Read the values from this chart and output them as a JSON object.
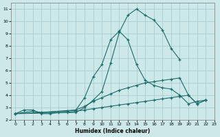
{
  "xlabel": "Humidex (Indice chaleur)",
  "background_color": "#cce8e8",
  "grid_color": "#aacccc",
  "line_color": "#1a6b6b",
  "xlim": [
    -0.5,
    23
  ],
  "ylim": [
    2,
    11.5
  ],
  "xticks": [
    0,
    1,
    2,
    3,
    4,
    5,
    6,
    7,
    8,
    9,
    10,
    11,
    12,
    13,
    14,
    15,
    16,
    17,
    18,
    19,
    20,
    21,
    22,
    23
  ],
  "yticks": [
    2,
    3,
    4,
    5,
    6,
    7,
    8,
    9,
    10,
    11
  ],
  "series": [
    {
      "x": [
        0,
        7,
        8,
        9,
        10,
        11,
        12,
        13,
        14,
        15,
        16,
        17,
        18,
        19
      ],
      "y": [
        2.5,
        2.6,
        3.0,
        3.6,
        4.3,
        6.6,
        9.1,
        10.5,
        11.0,
        10.5,
        10.1,
        9.3,
        7.8,
        6.9
      ]
    },
    {
      "x": [
        0,
        6,
        7,
        8,
        9,
        10,
        11,
        12,
        13,
        14,
        15,
        16,
        17,
        18,
        19,
        20,
        21,
        22
      ],
      "y": [
        2.5,
        2.7,
        2.8,
        3.8,
        5.5,
        6.5,
        8.5,
        9.2,
        8.5,
        6.5,
        5.2,
        4.8,
        4.6,
        4.5,
        4.0,
        3.3,
        3.5,
        3.6
      ]
    },
    {
      "x": [
        0,
        2,
        3,
        7,
        8,
        9,
        10,
        11,
        12,
        13,
        14,
        15,
        16,
        17,
        18,
        19,
        20,
        21,
        22
      ],
      "y": [
        2.5,
        2.7,
        2.6,
        2.8,
        3.1,
        3.5,
        3.8,
        4.1,
        4.4,
        4.6,
        4.8,
        5.0,
        5.1,
        5.2,
        5.3,
        5.4,
        4.0,
        3.3,
        3.6
      ]
    },
    {
      "x": [
        0,
        1,
        2,
        3,
        4,
        5,
        6,
        7,
        8,
        9,
        10,
        11,
        12,
        13,
        14,
        15,
        16,
        17,
        18,
        19,
        20,
        21,
        22
      ],
      "y": [
        2.5,
        2.8,
        2.8,
        2.5,
        2.5,
        2.6,
        2.6,
        2.7,
        2.8,
        2.9,
        3.0,
        3.1,
        3.2,
        3.3,
        3.4,
        3.5,
        3.6,
        3.7,
        3.8,
        3.9,
        4.0,
        3.3,
        3.6
      ]
    }
  ]
}
